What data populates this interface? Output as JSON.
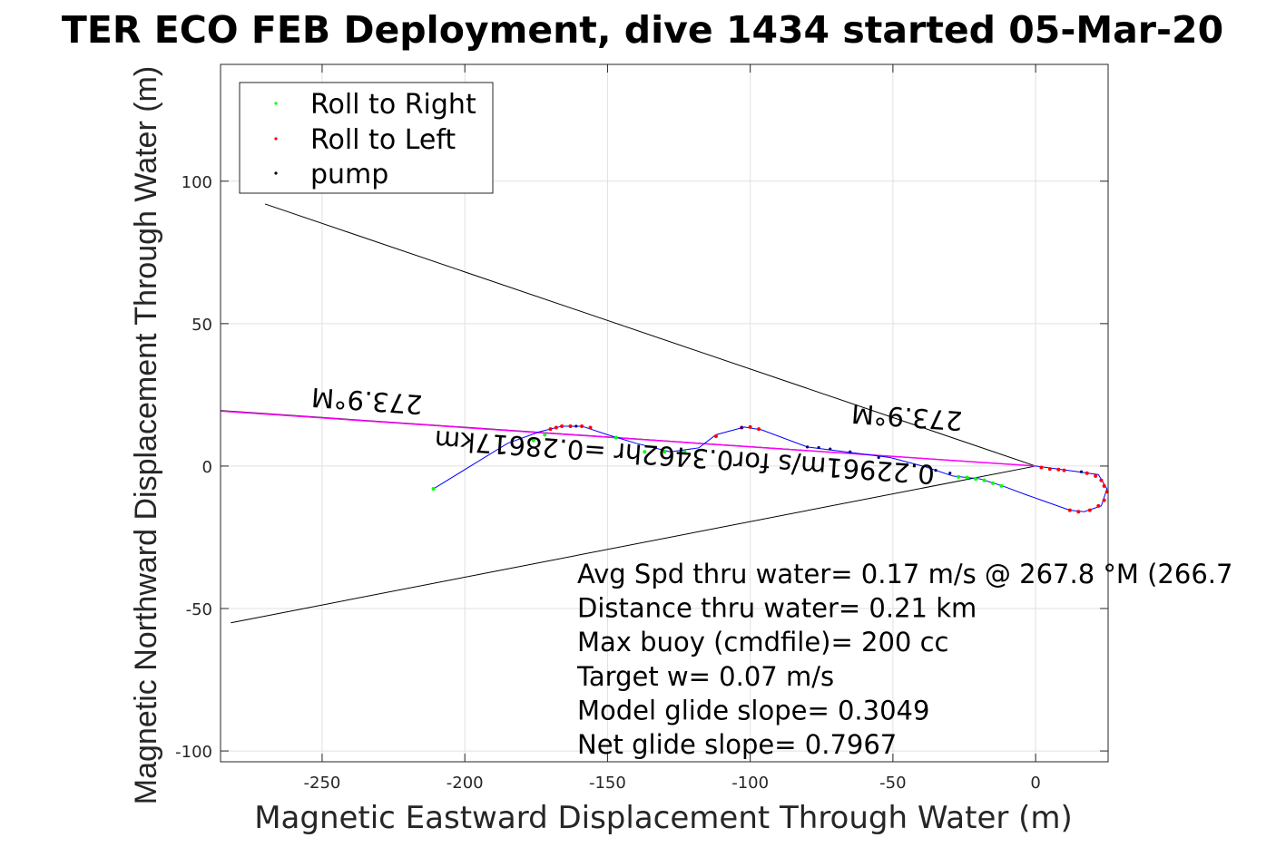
{
  "chart_data": {
    "type": "line",
    "title": "TER ECO FEB Deployment, dive 1434 started 05-Mar-20",
    "xlabel": "Magnetic Eastward Displacement Through Water (m)",
    "ylabel": "Magnetic Northward Displacement Through Water (m)",
    "xlim": [
      -285.6,
      25.4
    ],
    "ylim": [
      -103.8,
      141
    ],
    "xticks": [
      -250,
      -200,
      -150,
      -100,
      -50,
      0
    ],
    "yticks": [
      -100,
      -50,
      0,
      50,
      100
    ],
    "grid": true,
    "legend": {
      "placement": "top-left",
      "entries": [
        {
          "label": "Roll to Right",
          "color": "#00ff00"
        },
        {
          "label": "Roll to Left",
          "color": "#ff0000"
        },
        {
          "label": "pump",
          "color": "#000000"
        }
      ]
    },
    "track": {
      "color": "#0000ff",
      "x": [
        0,
        15,
        22,
        25,
        23,
        17,
        12,
        -3.5,
        -11.5,
        -19.5,
        -29,
        -38.5,
        -51,
        -80,
        -96,
        -102,
        -112,
        -118,
        -128,
        -140,
        -150,
        -159,
        -166,
        -174,
        -185,
        -211
      ],
      "y": [
        0,
        -2,
        -3,
        -8,
        -14,
        -16,
        -15.5,
        -10,
        -7,
        -4.5,
        -3.5,
        -0.3,
        3,
        6.7,
        12.7,
        13.7,
        11,
        6.4,
        5,
        8,
        11,
        14,
        14,
        12,
        8,
        -8
      ]
    },
    "markers": {
      "right": {
        "x": [
          -12,
          -15,
          -18,
          -21,
          -24,
          -27,
          -123,
          -130,
          -137,
          -147,
          -172,
          -176,
          -211
        ],
        "y": [
          -7,
          -6,
          -5,
          -4.5,
          -4,
          -3.8,
          5,
          5,
          5,
          10,
          11,
          9,
          -8
        ]
      },
      "left": {
        "x": [
          2,
          5,
          8,
          10,
          18,
          21,
          23,
          24,
          25,
          24,
          22,
          19,
          15,
          12,
          -97,
          -100,
          -103,
          -112,
          -156,
          -159,
          -163,
          -166,
          -168,
          -170
        ],
        "y": [
          -0.5,
          -1,
          -1.2,
          -1.5,
          -2.5,
          -3.5,
          -5,
          -7,
          -9,
          -12,
          -14,
          -15.5,
          -16,
          -15.5,
          13,
          13.7,
          13.5,
          10.5,
          13.5,
          14,
          14,
          14,
          13.5,
          13
        ]
      },
      "pump": {
        "x": [
          -80,
          -76,
          -72,
          -65,
          -55,
          -45,
          -35,
          -30,
          -103,
          -161,
          16
        ],
        "y": [
          6.7,
          6.5,
          6,
          5,
          3,
          0.5,
          -1.5,
          -2.5,
          13.5,
          14,
          -2
        ]
      }
    },
    "lines": [
      {
        "name": "heading-line-upper",
        "color": "#000000",
        "x": [
          -270,
          0
        ],
        "y": [
          92,
          0
        ]
      },
      {
        "name": "heading-line-lower",
        "color": "#000000",
        "x": [
          -282,
          0
        ],
        "y": [
          -55,
          0
        ]
      },
      {
        "name": "heading-line-mid",
        "color": "#000000",
        "x": [
          -285.6,
          0
        ],
        "y": [
          19.5,
          0
        ]
      },
      {
        "name": "current-line",
        "color": "#ff00ff",
        "x": [
          -285.6,
          0
        ],
        "y": [
          19.3,
          0
        ]
      }
    ],
    "annotations": {
      "heading_far": "273.9°M",
      "heading_near": "273.9°M",
      "current": "0.22961m/s for0.3462hr =0.28617km"
    },
    "info": [
      "Avg Spd thru water=  0.17 m/s @ 267.8 °M (266.7",
      "Distance thru water=  0.21 km",
      "Max buoy (cmdfile)= 200 cc",
      "Target w= 0.07 m/s",
      "Model glide slope= 0.3049",
      "Net glide slope= 0.7967"
    ]
  }
}
